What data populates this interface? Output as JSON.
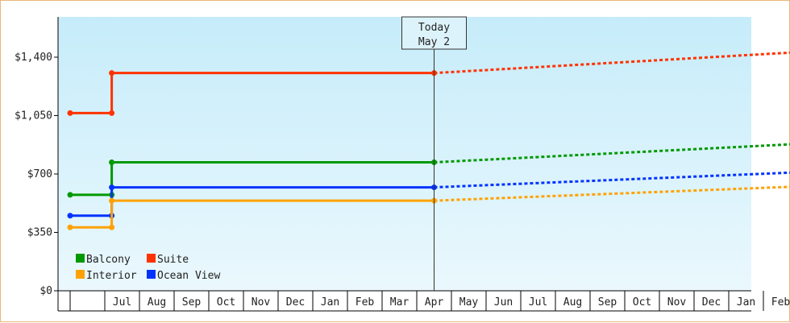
{
  "chart_data": {
    "type": "line",
    "style": "step-line with dotted projection",
    "today_marker": {
      "line1": "Today",
      "line2": "May 2"
    },
    "yticks": [
      "$0",
      "$350",
      "$700",
      "$1,050",
      "$1,400"
    ],
    "ylim": [
      0,
      1400
    ],
    "x_months": [
      "",
      "Jul",
      "Aug",
      "Sep",
      "Oct",
      "Nov",
      "Dec",
      "Jan",
      "Feb",
      "Mar",
      "Apr",
      "May",
      "Jun",
      "Jul",
      "Aug",
      "Sep",
      "Oct",
      "Nov",
      "Dec",
      "Jan",
      "Feb"
    ],
    "today_month_index": 10.5,
    "series": [
      {
        "name": "Suite",
        "color": "#ff3300",
        "history": [
          [
            0,
            1065
          ],
          [
            1.2,
            1065
          ],
          [
            1.2,
            1305
          ],
          [
            10.5,
            1305
          ]
        ],
        "projection": [
          [
            10.5,
            1305
          ],
          [
            21,
            1430
          ]
        ]
      },
      {
        "name": "Balcony",
        "color": "#009900",
        "history": [
          [
            0,
            575
          ],
          [
            1.2,
            575
          ],
          [
            1.2,
            770
          ],
          [
            10.5,
            770
          ]
        ],
        "projection": [
          [
            10.5,
            770
          ],
          [
            21,
            880
          ]
        ]
      },
      {
        "name": "Ocean View",
        "color": "#0033ff",
        "history": [
          [
            0,
            450
          ],
          [
            1.2,
            450
          ],
          [
            1.2,
            620
          ],
          [
            10.5,
            620
          ]
        ],
        "projection": [
          [
            10.5,
            620
          ],
          [
            21,
            710
          ]
        ]
      },
      {
        "name": "Interior",
        "color": "#ffa200",
        "history": [
          [
            0,
            380
          ],
          [
            1.2,
            380
          ],
          [
            1.2,
            540
          ],
          [
            10.5,
            540
          ]
        ],
        "projection": [
          [
            10.5,
            540
          ],
          [
            21,
            625
          ]
        ]
      }
    ],
    "legend": [
      {
        "name": "Balcony",
        "color": "#009900"
      },
      {
        "name": "Suite",
        "color": "#ff3300"
      },
      {
        "name": "Interior",
        "color": "#ffa200"
      },
      {
        "name": "Ocean View",
        "color": "#0033ff"
      }
    ],
    "legend_position": "bottom-left",
    "background_gradient": [
      "#c6ecfa",
      "#eaf8fd"
    ]
  }
}
